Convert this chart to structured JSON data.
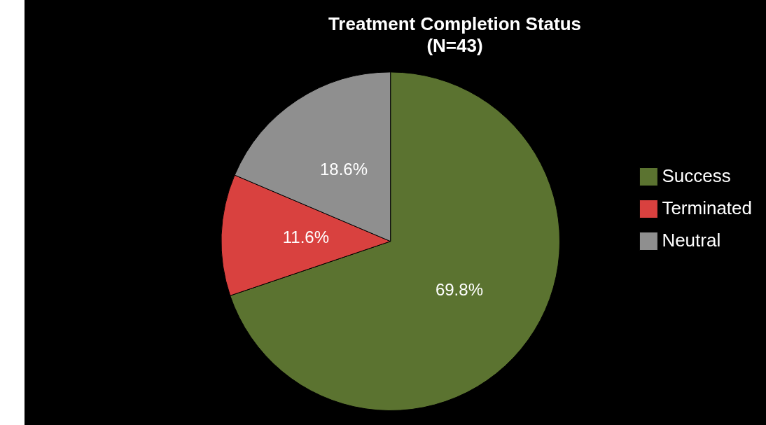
{
  "chart_data": {
    "type": "pie",
    "title": "Treatment Completion Status",
    "subtitle": "(N=43)",
    "categories": [
      "Success",
      "Terminated",
      "Neutral"
    ],
    "values": [
      69.8,
      11.6,
      18.6
    ],
    "colors": [
      "#5b7330",
      "#d9413f",
      "#8f8f8f"
    ],
    "value_labels": [
      "69.8%",
      "11.6%",
      "18.6%"
    ],
    "legend": "right"
  }
}
